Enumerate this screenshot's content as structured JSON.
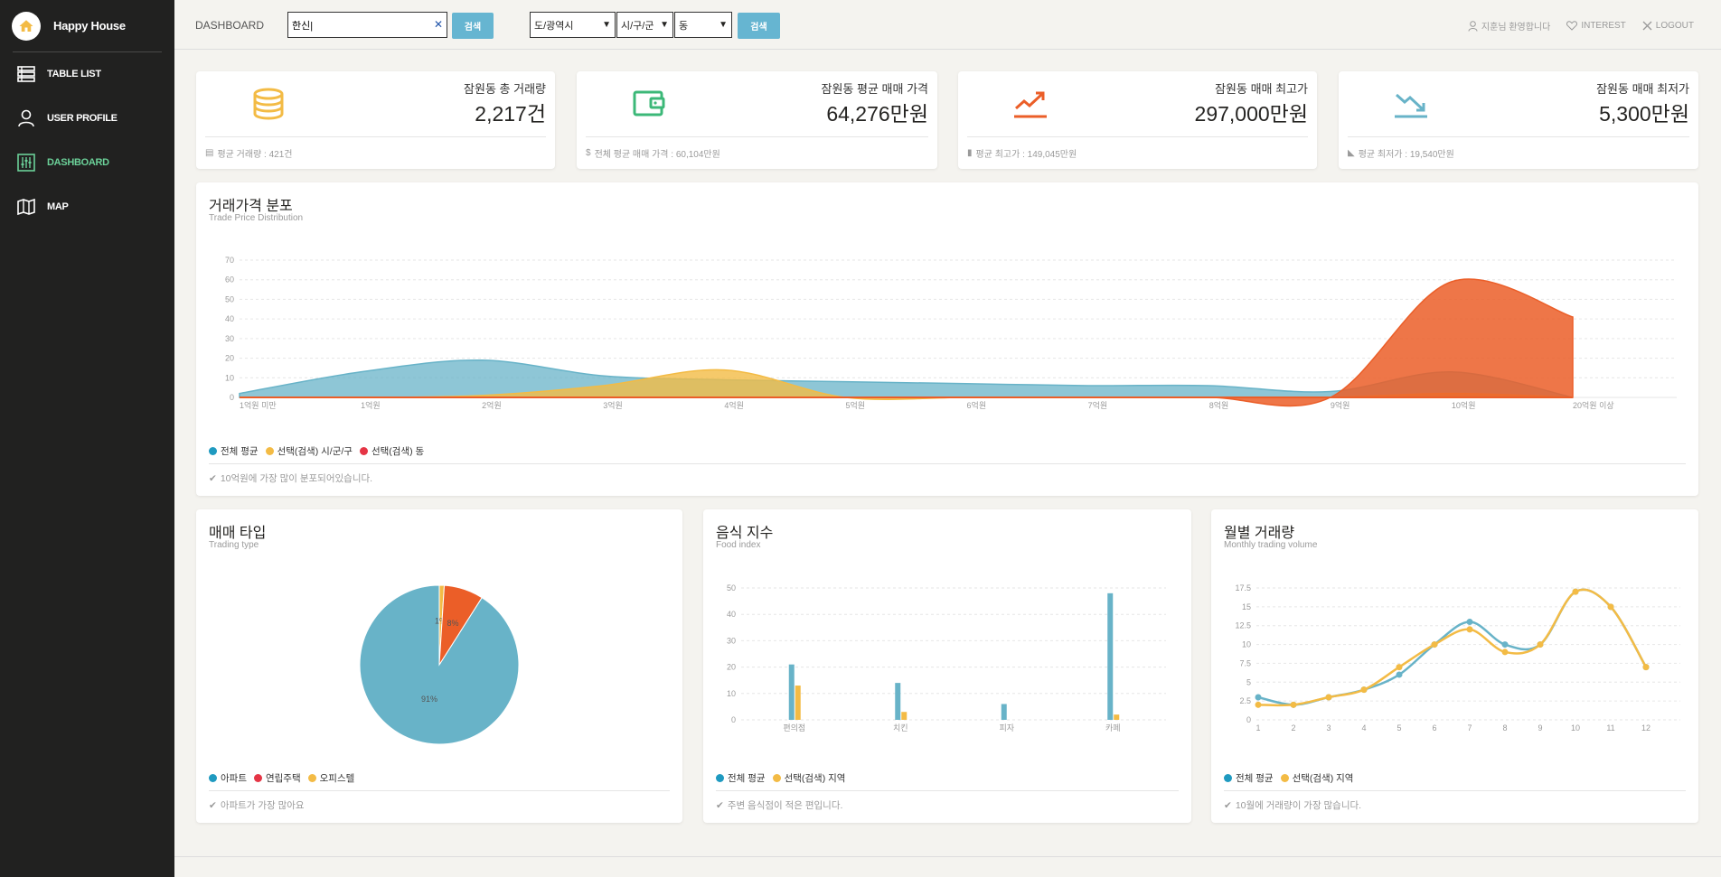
{
  "brand": {
    "name": "Happy House"
  },
  "sidebar": {
    "items": [
      {
        "label": "TABLE LIST",
        "icon": "table-list-icon"
      },
      {
        "label": "USER PROFILE",
        "icon": "user-icon"
      },
      {
        "label": "DASHBOARD",
        "icon": "dashboard-icon",
        "active": true
      },
      {
        "label": "MAP",
        "icon": "map-icon"
      }
    ]
  },
  "header": {
    "title": "DASHBOARD",
    "search_value": "한신|",
    "search_button": "검색",
    "select_city": "도/광역시",
    "select_district": "시/구/군",
    "select_dong": "동",
    "search_button2": "검색",
    "user_greeting": "지훈님 환영합니다",
    "interest": "INTEREST",
    "logout": "LOGOUT"
  },
  "stats": [
    {
      "title": "잠원동 총 거래량",
      "value": "2,217건",
      "footer": "평균 거래량 : 421건",
      "icon": "coins-icon",
      "color": "#f3bb45"
    },
    {
      "title": "잠원동 평균 매매 가격",
      "value": "64,276만원",
      "footer": "전체 평균 매매 가격 : 60,104만원",
      "icon": "wallet-icon",
      "color": "#6bd098"
    },
    {
      "title": "잠원동 매매 최고가",
      "value": "297,000만원",
      "footer": "평균 최고가 : 149,045만원",
      "icon": "trend-up-icon",
      "color": "#eb5e28"
    },
    {
      "title": "잠원동 매매 최저가",
      "value": "5,300만원",
      "footer": "평균 최저가 : 19,540만원",
      "icon": "trend-down-icon",
      "color": "#68b3c8"
    }
  ],
  "distribution": {
    "title": "거래가격 분포",
    "subtitle": "Trade Price Distribution",
    "legend": [
      "전체 평균",
      "선택(검색) 시/군/구",
      "선택(검색) 동"
    ],
    "note": "10억원에 가장 많이 분포되어있습니다."
  },
  "trading_type": {
    "title": "매매 타입",
    "subtitle": "Trading type",
    "legend": [
      "아파트",
      "연립주택",
      "오피스텔"
    ],
    "note": "아파트가 가장 많아요"
  },
  "food": {
    "title": "음식 지수",
    "subtitle": "Food index",
    "legend": [
      "전체 평균",
      "선택(검색) 지역"
    ],
    "note": "주변 음식점이 적은 편입니다."
  },
  "monthly": {
    "title": "월별 거래량",
    "subtitle": "Monthly trading volume",
    "legend": [
      "전체 평균",
      "선택(검색) 지역"
    ],
    "note": "10월에 거래량이 가장 많습니다."
  },
  "colors": {
    "blue": "#68b3c8",
    "yellow": "#f3bb45",
    "orange": "#eb5e28",
    "red": "#e53545",
    "teal": "#1f9ac0"
  },
  "chart_data": [
    {
      "type": "area",
      "categories": [
        "1억원 미만",
        "1억원",
        "2억원",
        "3억원",
        "4억원",
        "5억원",
        "6억원",
        "7억원",
        "8억원",
        "9억원",
        "10억원",
        "20억원 이상"
      ],
      "ylim": [
        0,
        70
      ],
      "yticks": [
        0,
        10,
        20,
        30,
        40,
        50,
        60,
        70
      ],
      "series": [
        {
          "name": "전체 평균",
          "values": [
            2,
            13,
            19,
            11,
            9,
            8,
            7,
            6,
            6,
            3,
            13,
            0
          ]
        },
        {
          "name": "선택(검색) 시/군/구",
          "values": [
            0,
            0,
            1,
            6,
            14,
            0,
            0,
            0,
            0,
            0,
            2,
            0
          ]
        },
        {
          "name": "선택(검색) 동",
          "values": [
            0,
            0,
            0,
            0,
            0,
            0,
            0,
            0,
            0,
            0,
            59,
            41
          ]
        }
      ]
    },
    {
      "type": "pie",
      "labels": [
        "아파트",
        "연립주택",
        "오피스텔"
      ],
      "values": [
        91,
        1,
        8
      ],
      "value_labels": [
        "91%",
        "1%",
        "8%"
      ]
    },
    {
      "type": "bar",
      "categories": [
        "편의점",
        "치킨",
        "피자",
        "카페"
      ],
      "ylim": [
        0,
        50
      ],
      "yticks": [
        0,
        10,
        20,
        30,
        40,
        50
      ],
      "series": [
        {
          "name": "전체 평균",
          "values": [
            21,
            14,
            6,
            48
          ]
        },
        {
          "name": "선택(검색) 지역",
          "values": [
            13,
            3,
            0,
            2
          ]
        }
      ]
    },
    {
      "type": "line",
      "x": [
        1,
        2,
        3,
        4,
        5,
        6,
        7,
        8,
        9,
        10,
        11,
        12
      ],
      "ylim": [
        0,
        17.5
      ],
      "yticks": [
        0,
        2.5,
        5,
        7.5,
        10,
        12.5,
        15,
        17.5
      ],
      "series": [
        {
          "name": "전체 평균",
          "values": [
            3,
            2,
            3,
            4,
            6,
            10,
            13,
            10,
            10,
            17,
            15,
            7
          ]
        },
        {
          "name": "선택(검색) 지역",
          "values": [
            2,
            2,
            3,
            4,
            7,
            10,
            12,
            9,
            10,
            17,
            15,
            7
          ]
        }
      ]
    }
  ]
}
